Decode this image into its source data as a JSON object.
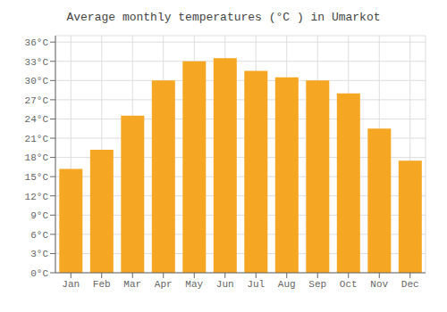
{
  "chart_data": {
    "type": "bar",
    "title": "Average monthly temperatures (°C ) in Umarkot",
    "categories": [
      "Jan",
      "Feb",
      "Mar",
      "Apr",
      "May",
      "Jun",
      "Jul",
      "Aug",
      "Sep",
      "Oct",
      "Nov",
      "Dec"
    ],
    "values": [
      16.2,
      19.2,
      24.5,
      30.0,
      33.0,
      33.5,
      31.5,
      30.5,
      30.0,
      28.0,
      22.5,
      17.5
    ],
    "color": "#F5A623",
    "ylim": [
      0,
      37
    ],
    "yticks": [
      {
        "value": 0,
        "label": "0°C"
      },
      {
        "value": 3,
        "label": "3°C"
      },
      {
        "value": 6,
        "label": "6°C"
      },
      {
        "value": 9,
        "label": "9°C"
      },
      {
        "value": 12,
        "label": "12°C"
      },
      {
        "value": 15,
        "label": "15°C"
      },
      {
        "value": 18,
        "label": "18°C"
      },
      {
        "value": 21,
        "label": "21°C"
      },
      {
        "value": 24,
        "label": "24°C"
      },
      {
        "value": 27,
        "label": "27°C"
      },
      {
        "value": 30,
        "label": "30°C"
      },
      {
        "value": 33,
        "label": "33°C"
      },
      {
        "value": 36,
        "label": "36°C"
      }
    ],
    "grid": true
  }
}
